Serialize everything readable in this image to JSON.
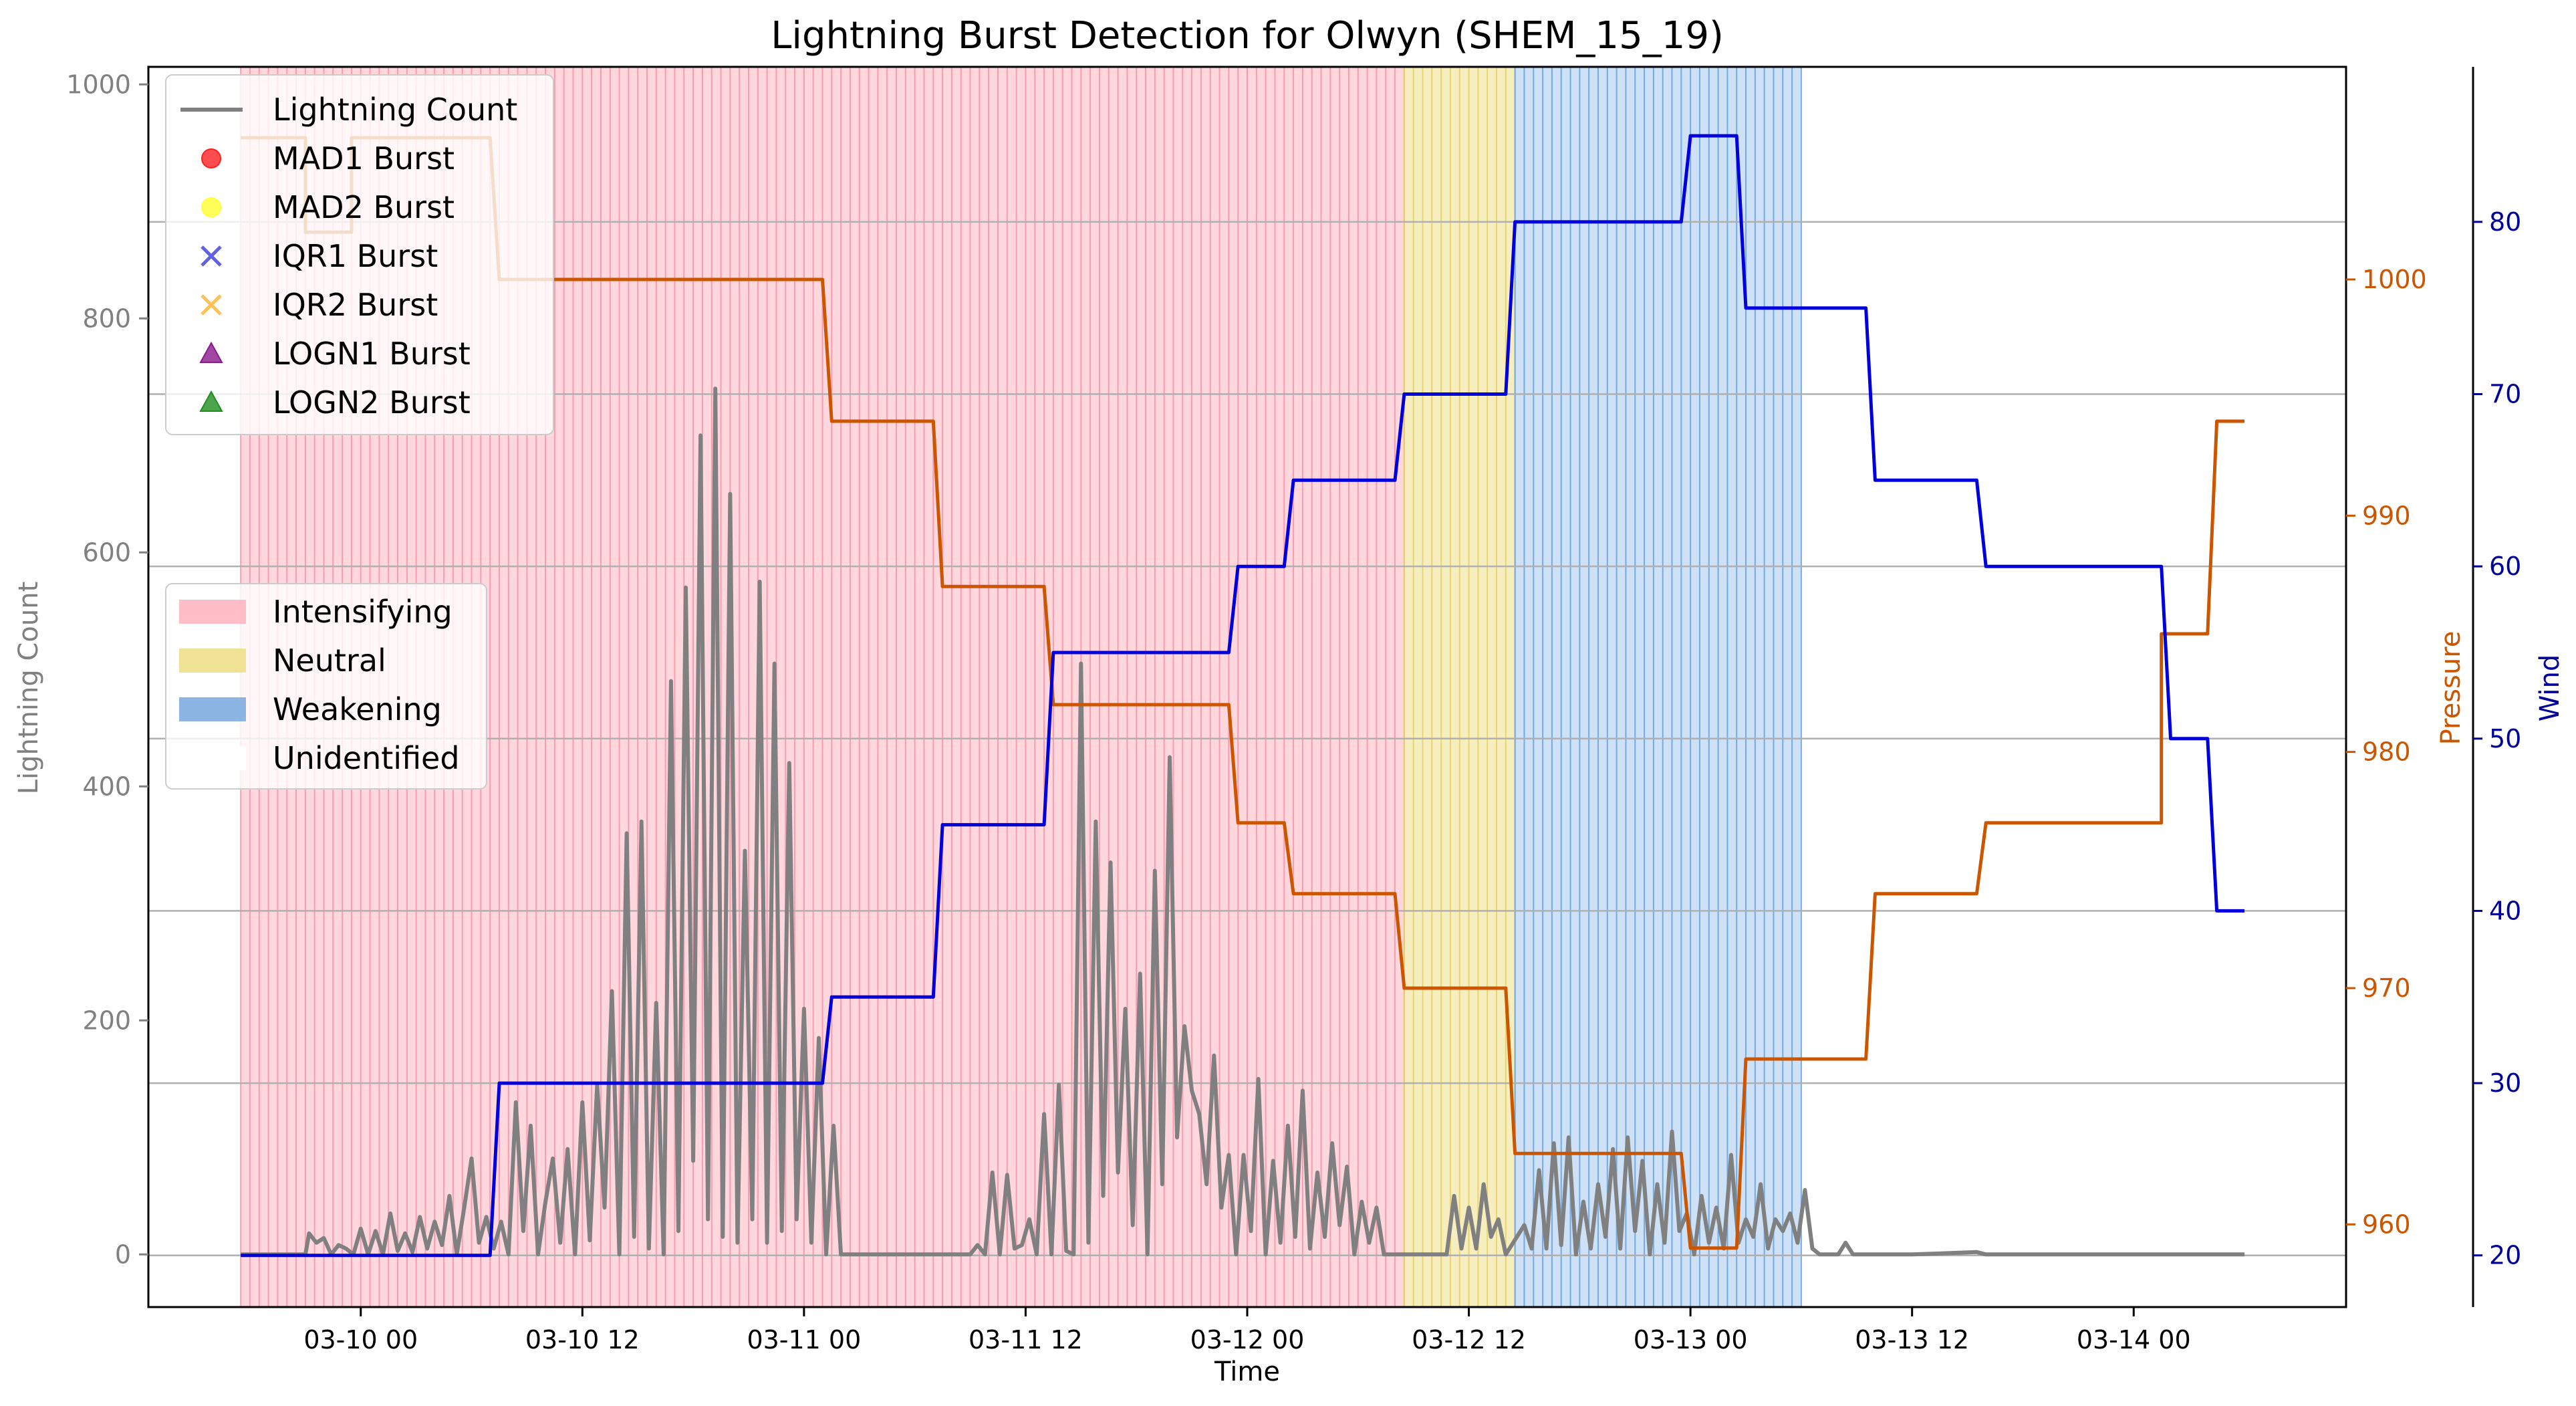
{
  "chart_data": {
    "type": "line",
    "title": "Lightning Burst Detection for Olwyn (SHEM_15_19)",
    "xlabel": "Time",
    "ylabel_left": "Lightning Count",
    "ylabel_pressure": "Pressure",
    "ylabel_wind": "Wind",
    "x_start_hours": -6.5,
    "x_end_hours": 102,
    "xlim_hours": [
      -11.5,
      107.5
    ],
    "xticks": [
      {
        "h": 0,
        "label": "03-10 00"
      },
      {
        "h": 12,
        "label": "03-10 12"
      },
      {
        "h": 24,
        "label": "03-11 00"
      },
      {
        "h": 36,
        "label": "03-11 12"
      },
      {
        "h": 48,
        "label": "03-12 00"
      },
      {
        "h": 60,
        "label": "03-12 12"
      },
      {
        "h": 72,
        "label": "03-13 00"
      },
      {
        "h": 84,
        "label": "03-13 12"
      },
      {
        "h": 96,
        "label": "03-14 00"
      }
    ],
    "ylim_count": [
      -45,
      1015
    ],
    "yticks_count": [
      0,
      200,
      400,
      600,
      800,
      1000
    ],
    "ylim_pressure": [
      956.5,
      1009
    ],
    "yticks_pressure": [
      960,
      970,
      980,
      990,
      1000
    ],
    "ylim_wind": [
      17,
      89
    ],
    "yticks_wind": [
      20,
      30,
      40,
      50,
      60,
      70,
      80
    ],
    "grid": "horizontal lines at wind ticks",
    "phases": [
      {
        "name": "Intensifying",
        "start": -6.5,
        "end": 56.5,
        "color": "#ffb6c1",
        "stroke": "#f48fa7"
      },
      {
        "name": "Neutral",
        "start": 56.5,
        "end": 62.5,
        "color": "#f0e08a",
        "stroke": "#e6cf5a"
      },
      {
        "name": "Weakening",
        "start": 62.5,
        "end": 78,
        "color": "#a7c8ef",
        "stroke": "#5e9ee0"
      }
    ],
    "legend_series": [
      {
        "label": "Lightning Count",
        "marker": "line",
        "color": "#808080"
      },
      {
        "label": "MAD1 Burst",
        "marker": "circle",
        "color": "#ff2020"
      },
      {
        "label": "MAD2 Burst",
        "marker": "circle",
        "color": "#ffff33"
      },
      {
        "label": "IQR1 Burst",
        "marker": "x",
        "color": "#3a3ae0"
      },
      {
        "label": "IQR2 Burst",
        "marker": "x",
        "color": "#ffb030"
      },
      {
        "label": "LOGN1 Burst",
        "marker": "triangle",
        "color": "#8b1a8b"
      },
      {
        "label": "LOGN2 Burst",
        "marker": "triangle",
        "color": "#1f8f1f"
      }
    ],
    "legend_phases": [
      {
        "label": "Intensifying",
        "color": "#ffb6c1"
      },
      {
        "label": "Neutral",
        "color": "#f0e08a"
      },
      {
        "label": "Weakening",
        "color": "#80ade0"
      },
      {
        "label": "Unidentified",
        "color": "#ffffff"
      }
    ],
    "pressure": {
      "name": "Pressure",
      "color": "#cc5500",
      "points": [
        [
          -6.5,
          1006
        ],
        [
          -3,
          1006
        ],
        [
          -3,
          1002
        ],
        [
          -0.5,
          1002
        ],
        [
          -0.5,
          1006
        ],
        [
          7,
          1006
        ],
        [
          7.5,
          1000
        ],
        [
          25,
          1000
        ],
        [
          25.5,
          994
        ],
        [
          31,
          994
        ],
        [
          31.5,
          987
        ],
        [
          37,
          987
        ],
        [
          37.5,
          982
        ],
        [
          47,
          982
        ],
        [
          47.5,
          977
        ],
        [
          50,
          977
        ],
        [
          50.5,
          974
        ],
        [
          56,
          974
        ],
        [
          56.5,
          970
        ],
        [
          62,
          970
        ],
        [
          62.5,
          963
        ],
        [
          71.5,
          963
        ],
        [
          72,
          959
        ],
        [
          74.5,
          959
        ],
        [
          75,
          967
        ],
        [
          81.5,
          967
        ],
        [
          82,
          974
        ],
        [
          87.5,
          974
        ],
        [
          88,
          977
        ],
        [
          97.5,
          977
        ],
        [
          97.5,
          985
        ],
        [
          100,
          985
        ],
        [
          100.5,
          994
        ],
        [
          102,
          994
        ]
      ]
    },
    "wind": {
      "name": "Wind",
      "color": "#0000dd",
      "points": [
        [
          -6.5,
          20
        ],
        [
          7,
          20
        ],
        [
          7.5,
          30
        ],
        [
          25,
          30
        ],
        [
          25.5,
          35
        ],
        [
          31,
          35
        ],
        [
          31.5,
          45
        ],
        [
          37,
          45
        ],
        [
          37.5,
          55
        ],
        [
          47,
          55
        ],
        [
          47.5,
          60
        ],
        [
          50,
          60
        ],
        [
          50.5,
          65
        ],
        [
          56,
          65
        ],
        [
          56.5,
          70
        ],
        [
          62,
          70
        ],
        [
          62.5,
          80
        ],
        [
          71.5,
          80
        ],
        [
          72,
          85
        ],
        [
          74.5,
          85
        ],
        [
          75,
          75
        ],
        [
          81.5,
          75
        ],
        [
          82,
          65
        ],
        [
          87.5,
          65
        ],
        [
          88,
          60
        ],
        [
          97.5,
          60
        ],
        [
          98,
          50
        ],
        [
          100,
          50
        ],
        [
          100.5,
          40
        ],
        [
          102,
          40
        ]
      ]
    },
    "lightning": {
      "name": "Lightning Count",
      "color": "#808080",
      "points": [
        [
          -6.5,
          0
        ],
        [
          -3,
          0
        ],
        [
          -2.8,
          18
        ],
        [
          -2.4,
          10
        ],
        [
          -2,
          14
        ],
        [
          -1.6,
          0
        ],
        [
          -1.2,
          8
        ],
        [
          -0.8,
          5
        ],
        [
          -0.4,
          0
        ],
        [
          0,
          22
        ],
        [
          0.4,
          0
        ],
        [
          0.8,
          20
        ],
        [
          1.2,
          0
        ],
        [
          1.6,
          35
        ],
        [
          2,
          3
        ],
        [
          2.4,
          18
        ],
        [
          2.8,
          2
        ],
        [
          3.2,
          32
        ],
        [
          3.6,
          5
        ],
        [
          4,
          28
        ],
        [
          4.4,
          8
        ],
        [
          4.8,
          50
        ],
        [
          5.2,
          0
        ],
        [
          5.6,
          40
        ],
        [
          6,
          82
        ],
        [
          6.4,
          10
        ],
        [
          6.8,
          32
        ],
        [
          7.2,
          5
        ],
        [
          7.6,
          28
        ],
        [
          8,
          0
        ],
        [
          8.4,
          130
        ],
        [
          8.8,
          20
        ],
        [
          9.2,
          110
        ],
        [
          9.6,
          0
        ],
        [
          10,
          45
        ],
        [
          10.4,
          82
        ],
        [
          10.8,
          10
        ],
        [
          11.2,
          90
        ],
        [
          11.6,
          0
        ],
        [
          12,
          130
        ],
        [
          12.4,
          12
        ],
        [
          12.8,
          145
        ],
        [
          13.2,
          40
        ],
        [
          13.6,
          225
        ],
        [
          14,
          0
        ],
        [
          14.4,
          360
        ],
        [
          14.8,
          15
        ],
        [
          15.2,
          370
        ],
        [
          15.6,
          5
        ],
        [
          16,
          215
        ],
        [
          16.4,
          0
        ],
        [
          16.8,
          490
        ],
        [
          17.2,
          20
        ],
        [
          17.6,
          570
        ],
        [
          18,
          80
        ],
        [
          18.4,
          700
        ],
        [
          18.8,
          30
        ],
        [
          19.2,
          740
        ],
        [
          19.6,
          15
        ],
        [
          20,
          650
        ],
        [
          20.4,
          10
        ],
        [
          20.8,
          345
        ],
        [
          21.2,
          30
        ],
        [
          21.6,
          575
        ],
        [
          22,
          10
        ],
        [
          22.4,
          505
        ],
        [
          22.8,
          20
        ],
        [
          23.2,
          420
        ],
        [
          23.6,
          30
        ],
        [
          24,
          210
        ],
        [
          24.4,
          10
        ],
        [
          24.8,
          185
        ],
        [
          25.2,
          0
        ],
        [
          25.6,
          110
        ],
        [
          26,
          0
        ],
        [
          33,
          0
        ],
        [
          33.4,
          8
        ],
        [
          33.8,
          0
        ],
        [
          34.2,
          70
        ],
        [
          34.6,
          0
        ],
        [
          35,
          68
        ],
        [
          35.4,
          5
        ],
        [
          35.8,
          8
        ],
        [
          36.2,
          30
        ],
        [
          36.6,
          0
        ],
        [
          37,
          120
        ],
        [
          37.4,
          0
        ],
        [
          37.8,
          145
        ],
        [
          38.2,
          3
        ],
        [
          38.6,
          0
        ],
        [
          39,
          505
        ],
        [
          39.4,
          10
        ],
        [
          39.8,
          370
        ],
        [
          40.2,
          50
        ],
        [
          40.6,
          335
        ],
        [
          41,
          70
        ],
        [
          41.4,
          210
        ],
        [
          41.8,
          25
        ],
        [
          42.2,
          240
        ],
        [
          42.6,
          0
        ],
        [
          43,
          328
        ],
        [
          43.4,
          60
        ],
        [
          43.8,
          425
        ],
        [
          44.2,
          100
        ],
        [
          44.6,
          195
        ],
        [
          45,
          140
        ],
        [
          45.4,
          120
        ],
        [
          45.8,
          60
        ],
        [
          46.2,
          170
        ],
        [
          46.6,
          40
        ],
        [
          47,
          85
        ],
        [
          47.4,
          0
        ],
        [
          47.8,
          85
        ],
        [
          48.2,
          20
        ],
        [
          48.6,
          150
        ],
        [
          49,
          0
        ],
        [
          49.4,
          80
        ],
        [
          49.8,
          10
        ],
        [
          50.2,
          110
        ],
        [
          50.6,
          15
        ],
        [
          51,
          140
        ],
        [
          51.4,
          5
        ],
        [
          51.8,
          70
        ],
        [
          52.2,
          15
        ],
        [
          52.6,
          95
        ],
        [
          53,
          25
        ],
        [
          53.4,
          75
        ],
        [
          53.8,
          0
        ],
        [
          54.2,
          45
        ],
        [
          54.6,
          10
        ],
        [
          55,
          40
        ],
        [
          55.4,
          0
        ],
        [
          56,
          0
        ],
        [
          58.8,
          0
        ],
        [
          59.2,
          50
        ],
        [
          59.6,
          5
        ],
        [
          60,
          40
        ],
        [
          60.4,
          5
        ],
        [
          60.8,
          60
        ],
        [
          61.2,
          15
        ],
        [
          61.6,
          30
        ],
        [
          62,
          0
        ],
        [
          63,
          25
        ],
        [
          63.4,
          5
        ],
        [
          63.8,
          72
        ],
        [
          64.2,
          5
        ],
        [
          64.6,
          95
        ],
        [
          65,
          8
        ],
        [
          65.4,
          100
        ],
        [
          65.8,
          0
        ],
        [
          66.2,
          45
        ],
        [
          66.6,
          5
        ],
        [
          67,
          60
        ],
        [
          67.4,
          15
        ],
        [
          67.8,
          90
        ],
        [
          68.2,
          5
        ],
        [
          68.6,
          100
        ],
        [
          69,
          20
        ],
        [
          69.4,
          80
        ],
        [
          69.8,
          0
        ],
        [
          70.2,
          60
        ],
        [
          70.6,
          10
        ],
        [
          71,
          105
        ],
        [
          71.4,
          20
        ],
        [
          71.8,
          35
        ],
        [
          72.2,
          0
        ],
        [
          72.6,
          50
        ],
        [
          73,
          10
        ],
        [
          73.4,
          40
        ],
        [
          73.8,
          5
        ],
        [
          74.2,
          85
        ],
        [
          74.6,
          10
        ],
        [
          75,
          30
        ],
        [
          75.4,
          15
        ],
        [
          75.8,
          60
        ],
        [
          76.2,
          5
        ],
        [
          76.6,
          30
        ],
        [
          77,
          20
        ],
        [
          77.4,
          35
        ],
        [
          77.8,
          10
        ],
        [
          78.2,
          55
        ],
        [
          78.6,
          5
        ],
        [
          79,
          0
        ],
        [
          80,
          0
        ],
        [
          80.4,
          10
        ],
        [
          80.8,
          0
        ],
        [
          81,
          0
        ],
        [
          84,
          0
        ],
        [
          87.5,
          2
        ],
        [
          88,
          0
        ],
        [
          95,
          0
        ],
        [
          102,
          0
        ]
      ]
    }
  }
}
